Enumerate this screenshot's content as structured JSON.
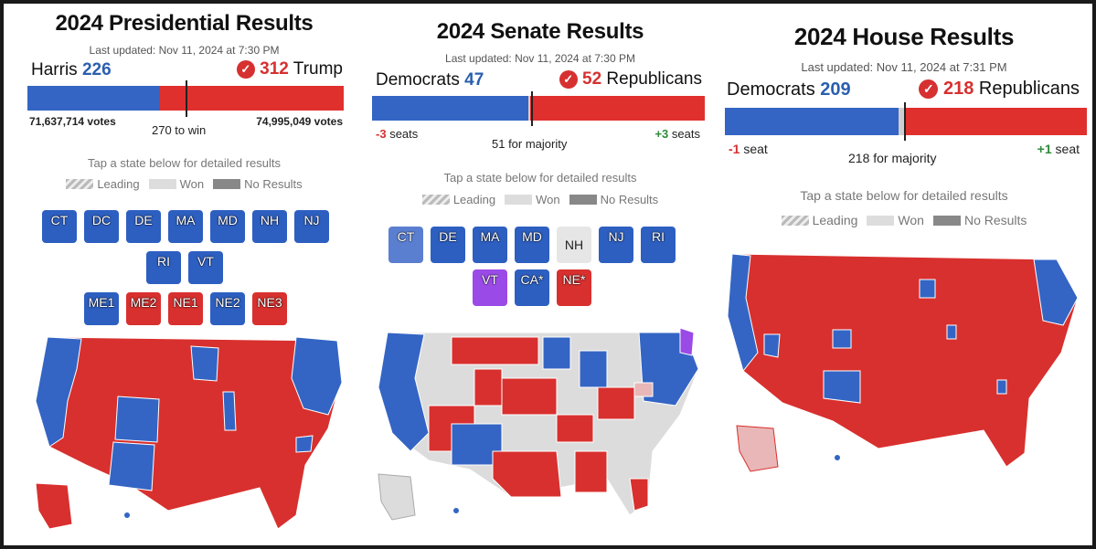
{
  "colors": {
    "dem": "#3465c4",
    "rep": "#e0302e",
    "won": "#dddddd",
    "leading": "#bbbbbb",
    "no_results": "#888888",
    "independent": "#9a4ae6"
  },
  "presidential": {
    "title": "2024 Presidential Results",
    "updated": "Last updated: Nov 11, 2024 at 7:30 PM",
    "left_name": "Harris",
    "left_count": "226",
    "right_count": "312",
    "right_name": "Trump",
    "left_votes": "71,637,714 votes",
    "right_votes": "74,995,049 votes",
    "threshold": "270 to win",
    "dem_share": 0.42,
    "tap": "Tap a state below for detailed results",
    "legend": {
      "leading": "Leading",
      "won": "Won",
      "no_results": "No Results"
    },
    "tiles_row1": [
      "CT",
      "DC",
      "DE",
      "MA",
      "MD",
      "NH",
      "NJ"
    ],
    "tiles_row2": [
      "RI",
      "VT"
    ],
    "tiles_row3": [
      "ME1",
      "ME2",
      "NE1",
      "NE2",
      "NE3"
    ]
  },
  "senate": {
    "title": "2024 Senate Results",
    "updated": "Last updated: Nov 11, 2024 at 7:30 PM",
    "left_name": "Democrats",
    "left_count": "47",
    "right_count": "52",
    "right_name": "Republicans",
    "left_change": "-3",
    "left_change_unit": "seats",
    "right_change": "+3",
    "right_change_unit": "seats",
    "threshold": "51 for majority",
    "dem_share": 0.47,
    "tap": "Tap a state below for detailed results",
    "legend": {
      "leading": "Leading",
      "won": "Won",
      "no_results": "No Results"
    },
    "tiles_row1": [
      "CT",
      "DE",
      "MA",
      "MD",
      "NH",
      "NJ",
      "RI"
    ],
    "tiles_row2": [
      "VT",
      "CA*",
      "NE*"
    ]
  },
  "house": {
    "title": "2024 House Results",
    "updated": "Last updated: Nov 11, 2024 at 7:31 PM",
    "left_name": "Democrats",
    "left_count": "209",
    "right_count": "218",
    "right_name": "Republicans",
    "left_change": "-1",
    "left_change_unit": "seat",
    "right_change": "+1",
    "right_change_unit": "seat",
    "threshold": "218 for majority",
    "dem_share": 0.48,
    "tap": "Tap a state below for detailed results",
    "legend": {
      "leading": "Leading",
      "won": "Won",
      "no_results": "No Results"
    }
  }
}
